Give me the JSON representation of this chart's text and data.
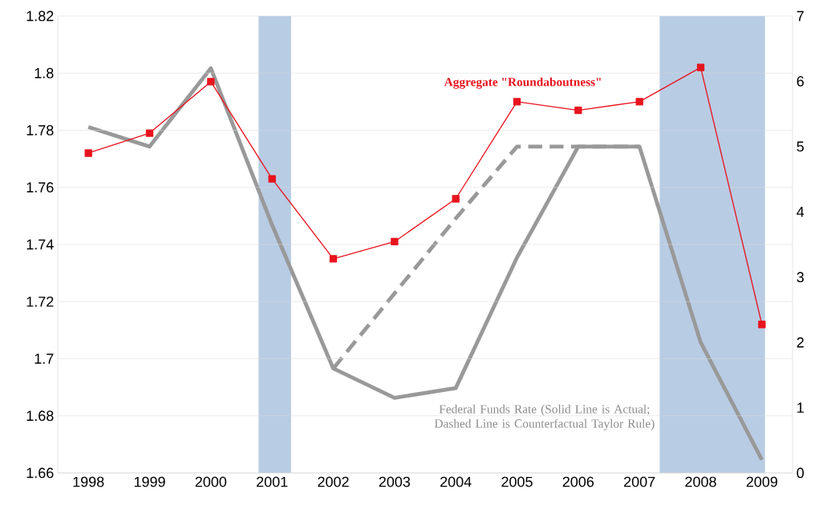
{
  "chart_data": {
    "type": "line",
    "x": [
      1998,
      1999,
      2000,
      2001,
      2002,
      2003,
      2004,
      2005,
      2006,
      2007,
      2008,
      2009
    ],
    "xlim": [
      1997.5,
      2009.5
    ],
    "xticks": [
      1998,
      1999,
      2000,
      2001,
      2002,
      2003,
      2004,
      2005,
      2006,
      2007,
      2008,
      2009
    ],
    "ylim": [
      1.66,
      1.82
    ],
    "yticks": [
      1.66,
      1.68,
      1.7,
      1.72,
      1.74,
      1.76,
      1.78,
      1.8,
      1.82
    ],
    "y2lim": [
      0,
      7
    ],
    "y2ticks": [
      0,
      1,
      2,
      3,
      4,
      5,
      6,
      7
    ],
    "grid": "y",
    "series": [
      {
        "name": "Aggregate \"Roundaboutness\"",
        "color": "#e8141e",
        "axis": "y",
        "marker": "square",
        "line_style": "solid",
        "values": [
          1.772,
          1.779,
          1.797,
          1.763,
          1.735,
          1.741,
          1.756,
          1.79,
          1.787,
          1.79,
          1.802,
          1.712
        ]
      },
      {
        "color": "#999999",
        "axis": "y2",
        "marker": "none",
        "line_style": "solid",
        "values": [
          5.3,
          5.0,
          6.2,
          3.8,
          1.6,
          1.15,
          1.3,
          3.3,
          5.0,
          5.0,
          2.0,
          0.2
        ]
      },
      {
        "color": "#999999",
        "axis": "y2",
        "marker": "none",
        "line_style": "dashed",
        "values": [
          null,
          null,
          null,
          null,
          1.6,
          2.75,
          3.9,
          5.0,
          5.0,
          5.0,
          null,
          null
        ]
      }
    ],
    "bands": [
      {
        "axis": "x",
        "from": 2000.78,
        "to": 2001.31,
        "color": "#b8cce4"
      },
      {
        "axis": "x",
        "from": 2007.33,
        "to": 2009.05,
        "color": "#b8cce4"
      }
    ],
    "annotations": [
      "Federal Funds Rate (Solid Line is Actual; Dashed Line is Counterfactual Taylor Rule)"
    ]
  }
}
